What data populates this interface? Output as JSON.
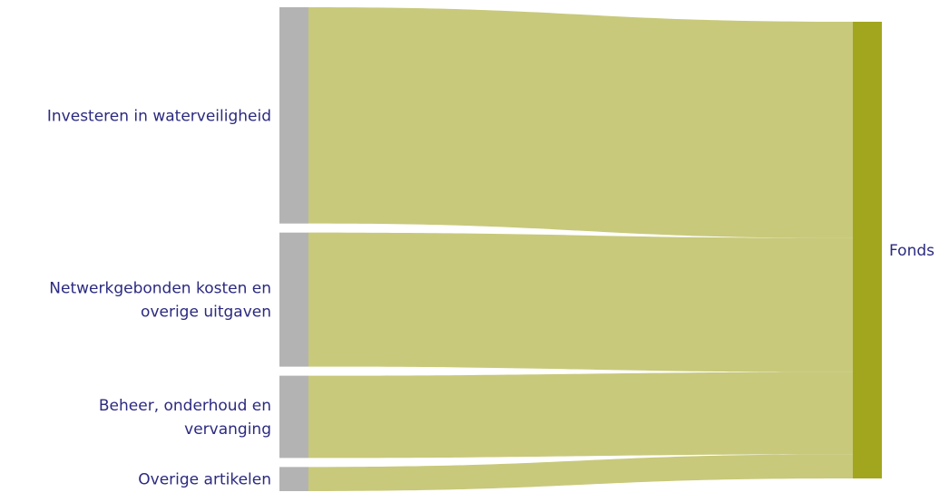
{
  "chart_data": {
    "type": "sankey",
    "title": "",
    "source_nodes": [
      {
        "label_lines": [
          "Investeren in waterveiligheid"
        ],
        "value": 242
      },
      {
        "label_lines": [
          "Netwerkgebonden kosten en",
          "overige uitgaven"
        ],
        "value": 150
      },
      {
        "label_lines": [
          "Beheer, onderhoud en",
          "vervanging"
        ],
        "value": 92
      },
      {
        "label_lines": [
          "Overige artikelen"
        ],
        "value": 27
      }
    ],
    "target_node": {
      "label": "Fonds"
    },
    "colors": {
      "source_node": "#b3b3b3",
      "link": "#c8c97b",
      "target_node": "#a2a61e",
      "label": "#2b2a80"
    }
  }
}
